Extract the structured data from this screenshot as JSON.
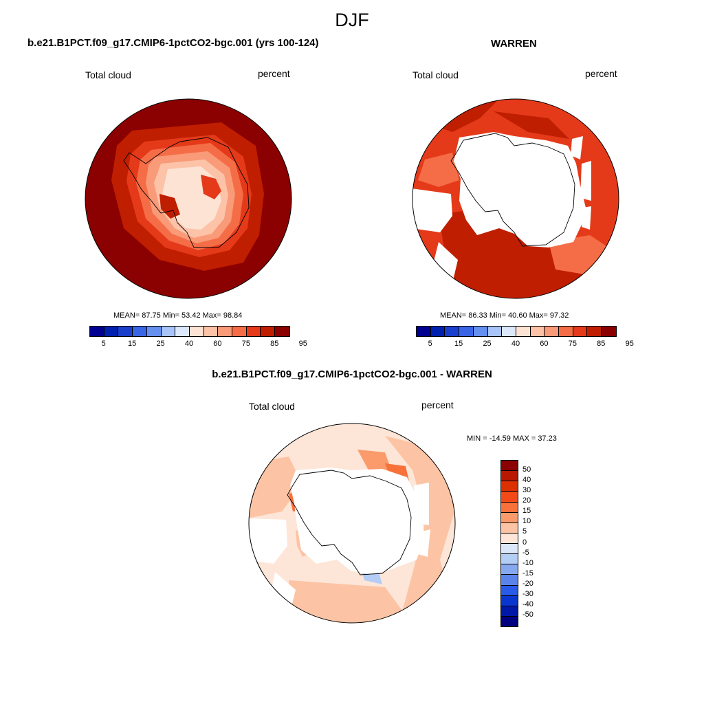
{
  "figure": {
    "title": "DJF"
  },
  "panels": [
    {
      "title": "b.e21.B1PCT.f09_g17.CMIP6-1pctCO2-bgc.001 (yrs 100-124)",
      "variable": "Total cloud",
      "units": "percent",
      "stats": "MEAN=  87.75  Min=  53.42  Max=  98.84"
    },
    {
      "title": "WARREN",
      "variable": "Total cloud",
      "units": "percent",
      "stats": "MEAN=  86.33  Min=  40.60  Max=  97.32"
    },
    {
      "title": "b.e21.B1PCT.f09_g17.CMIP6-1pctCO2-bgc.001 - WARREN",
      "variable": "Total cloud",
      "units": "percent",
      "stats": "MIN = -14.59 MAX =  37.23"
    }
  ],
  "colorbar_abs": {
    "ticks": [
      "5",
      "15",
      "25",
      "40",
      "60",
      "75",
      "85",
      "95"
    ],
    "colors": [
      "#000090",
      "#0020b0",
      "#1a3fcc",
      "#3a66e6",
      "#6690f0",
      "#a8c4f8",
      "#dce8fc",
      "#fde3d4",
      "#fcc3a8",
      "#f99a78",
      "#f46d47",
      "#e43a1a",
      "#c01e00",
      "#8b0000"
    ]
  },
  "colorbar_diff": {
    "ticks": [
      "50",
      "40",
      "30",
      "20",
      "15",
      "10",
      "5",
      "0",
      "-5",
      "-10",
      "-15",
      "-20",
      "-30",
      "-40",
      "-50"
    ],
    "colors": [
      "#8b0000",
      "#b81800",
      "#dd3000",
      "#f44a1a",
      "#f8703a",
      "#fb9a6a",
      "#fcc4a4",
      "#fde6d8",
      "#dae7fa",
      "#b4cdf4",
      "#86a8ee",
      "#5a84ea",
      "#2a5ae8",
      "#0a36d0",
      "#0018a8",
      "#000080"
    ]
  }
}
